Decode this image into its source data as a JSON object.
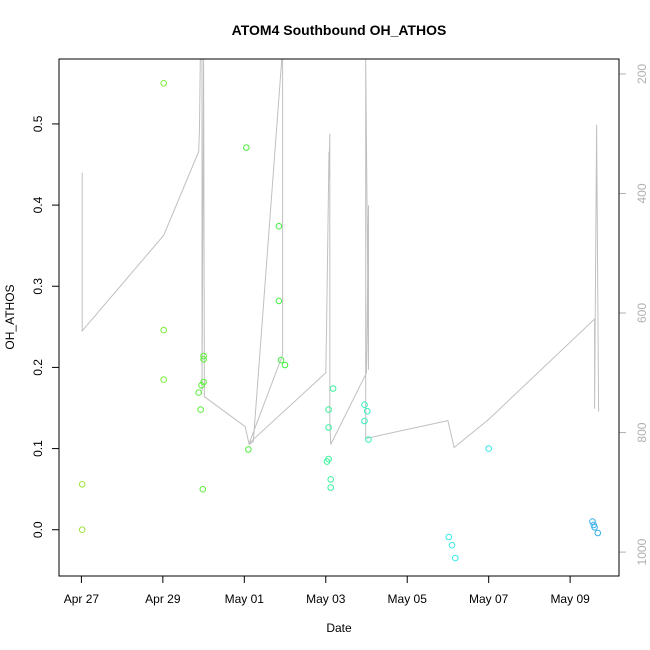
{
  "chart_data": {
    "type": "scatter",
    "title": "ATOM4 Southbound OH_ATHOS",
    "xlabel": "Date",
    "ylabel": "OH_ATHOS",
    "x_ticks": [
      {
        "label": "Apr 27",
        "day": 0
      },
      {
        "label": "Apr 29",
        "day": 2
      },
      {
        "label": "May 01",
        "day": 4
      },
      {
        "label": "May 03",
        "day": 6
      },
      {
        "label": "May 05",
        "day": 8
      },
      {
        "label": "May 07",
        "day": 10
      },
      {
        "label": "May 09",
        "day": 12
      }
    ],
    "xlim": [
      -0.55,
      13.2
    ],
    "ylim": [
      -0.057,
      0.58
    ],
    "y_ticks": [
      0.0,
      0.1,
      0.2,
      0.3,
      0.4,
      0.5
    ],
    "y_tick_labels": [
      "0.0",
      "0.1",
      "0.2",
      "0.3",
      "0.4",
      "0.5"
    ],
    "y2_ticks": [
      200,
      400,
      600,
      800,
      1000
    ],
    "y2_tick_labels": [
      "200",
      "400",
      "600",
      "800",
      "1000"
    ],
    "y2_reversed": true,
    "y2_lim": [
      1040,
      175
    ],
    "points": [
      {
        "day": 0.02,
        "y": 0.056,
        "color": "#9be33a"
      },
      {
        "day": 0.02,
        "y": 0.0,
        "color": "#9be33a"
      },
      {
        "day": 2.02,
        "y": 0.55,
        "color": "#7cee3a"
      },
      {
        "day": 2.02,
        "y": 0.246,
        "color": "#7cee3a"
      },
      {
        "day": 2.02,
        "y": 0.185,
        "color": "#7cee3a"
      },
      {
        "day": 2.88,
        "y": 0.169,
        "color": "#5cf03a"
      },
      {
        "day": 2.93,
        "y": 0.148,
        "color": "#5cf03a"
      },
      {
        "day": 2.95,
        "y": 0.178,
        "color": "#5cf03a"
      },
      {
        "day": 2.98,
        "y": 0.05,
        "color": "#5cf03a"
      },
      {
        "day": 3.0,
        "y": 0.182,
        "color": "#5cf03a"
      },
      {
        "day": 3.0,
        "y": 0.21,
        "color": "#5cf03a"
      },
      {
        "day": 3.0,
        "y": 0.214,
        "color": "#5cf03a"
      },
      {
        "day": 4.05,
        "y": 0.471,
        "color": "#4cf03a"
      },
      {
        "day": 4.1,
        "y": 0.099,
        "color": "#4cf03a"
      },
      {
        "day": 4.85,
        "y": 0.374,
        "color": "#44f040"
      },
      {
        "day": 4.85,
        "y": 0.282,
        "color": "#44f040"
      },
      {
        "day": 4.9,
        "y": 0.209,
        "color": "#44f040"
      },
      {
        "day": 5.0,
        "y": 0.203,
        "color": "#44f040"
      },
      {
        "day": 6.03,
        "y": 0.084,
        "color": "#3af09a"
      },
      {
        "day": 6.07,
        "y": 0.087,
        "color": "#3af09a"
      },
      {
        "day": 6.07,
        "y": 0.148,
        "color": "#3af09a"
      },
      {
        "day": 6.07,
        "y": 0.126,
        "color": "#3af09a"
      },
      {
        "day": 6.12,
        "y": 0.062,
        "color": "#3af09a"
      },
      {
        "day": 6.12,
        "y": 0.052,
        "color": "#3af09a"
      },
      {
        "day": 6.18,
        "y": 0.174,
        "color": "#3af09a"
      },
      {
        "day": 6.95,
        "y": 0.154,
        "color": "#3af0c0"
      },
      {
        "day": 6.95,
        "y": 0.134,
        "color": "#3af0c0"
      },
      {
        "day": 7.02,
        "y": 0.146,
        "color": "#3af0c0"
      },
      {
        "day": 7.05,
        "y": 0.111,
        "color": "#3af0c0"
      },
      {
        "day": 9.02,
        "y": -0.009,
        "color": "#3ae8e8"
      },
      {
        "day": 9.1,
        "y": -0.019,
        "color": "#3ae8e8"
      },
      {
        "day": 9.18,
        "y": -0.035,
        "color": "#3ae8e8"
      },
      {
        "day": 10.0,
        "y": 0.1,
        "color": "#3ae8e8"
      },
      {
        "day": 12.55,
        "y": 0.01,
        "color": "#3ab0ea"
      },
      {
        "day": 12.58,
        "y": 0.006,
        "color": "#3ab0ea"
      },
      {
        "day": 12.6,
        "y": 0.003,
        "color": "#3ab0ea"
      },
      {
        "day": 12.68,
        "y": -0.004,
        "color": "#3ab0ea"
      }
    ],
    "altitude_line": {
      "color": "#c0c0c0",
      "points": [
        [
          0.02,
          365
        ],
        [
          0.02,
          630
        ],
        [
          2.02,
          470
        ],
        [
          2.88,
          330
        ],
        [
          2.9,
          290
        ],
        [
          2.92,
          155
        ],
        [
          2.96,
          155
        ],
        [
          2.96,
          730
        ],
        [
          3.0,
          155
        ],
        [
          3.02,
          740
        ],
        [
          4.02,
          790
        ],
        [
          4.12,
          820
        ],
        [
          4.22,
          815
        ],
        [
          4.92,
          150
        ],
        [
          4.94,
          155
        ],
        [
          4.94,
          670
        ],
        [
          4.12,
          818
        ],
        [
          6.0,
          700
        ],
        [
          6.02,
          620
        ],
        [
          6.08,
          330
        ],
        [
          6.08,
          375
        ],
        [
          6.1,
          300
        ],
        [
          6.1,
          780
        ],
        [
          6.12,
          820
        ],
        [
          7.0,
          700
        ],
        [
          7.05,
          420
        ],
        [
          7.05,
          420
        ],
        [
          7.05,
          695
        ],
        [
          6.98,
          155
        ],
        [
          6.98,
          810
        ],
        [
          9.0,
          780
        ],
        [
          9.15,
          825
        ],
        [
          10.0,
          778
        ],
        [
          12.6,
          610
        ],
        [
          12.6,
          760
        ],
        [
          12.65,
          285
        ],
        [
          12.7,
          765
        ]
      ]
    }
  }
}
